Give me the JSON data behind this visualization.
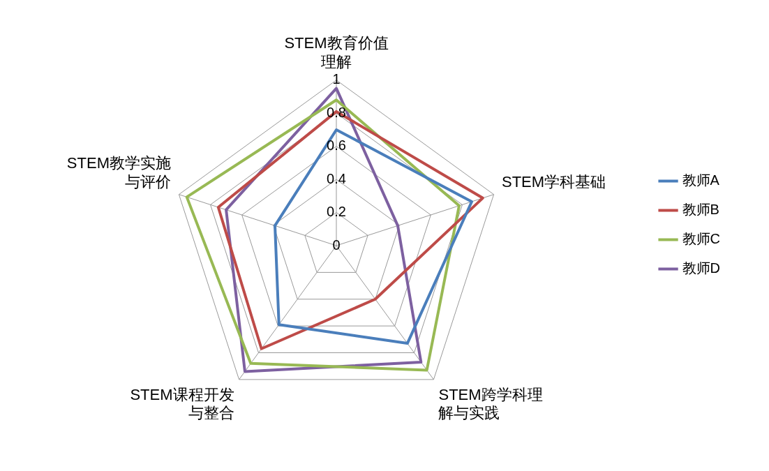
{
  "chart_data": {
    "type": "radar",
    "categories": [
      "STEM教育价值理解",
      "STEM学科基础",
      "STEM跨学科理解与实践",
      "STEM课程开发与整合",
      "STEM教学实施与评价"
    ],
    "series": [
      {
        "name": "教师A",
        "color": "#4a7ebb",
        "values": [
          0.7,
          0.86,
          0.73,
          0.59,
          0.39
        ]
      },
      {
        "name": "教师B",
        "color": "#be4b48",
        "values": [
          0.81,
          0.93,
          0.4,
          0.77,
          0.75
        ]
      },
      {
        "name": "教师C",
        "color": "#98b954",
        "values": [
          0.88,
          0.78,
          0.93,
          0.88,
          0.95
        ]
      },
      {
        "name": "教师D",
        "color": "#7d60a0",
        "values": [
          0.95,
          0.39,
          0.87,
          0.94,
          0.7
        ]
      }
    ],
    "ylim": [
      0,
      1
    ],
    "yticks": [
      0,
      0.2,
      0.4,
      0.6,
      0.8,
      1
    ],
    "grid": true,
    "legend": "right",
    "marker": "none",
    "line_style": "solid"
  }
}
